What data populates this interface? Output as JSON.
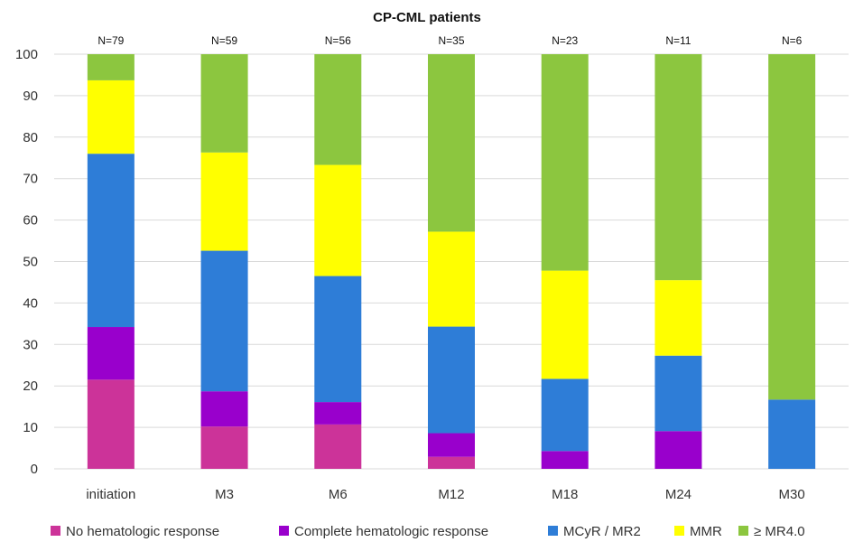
{
  "chart_data": {
    "type": "bar",
    "stacked": true,
    "title": "CP-CML patients",
    "categories": [
      "initiation",
      "M3",
      "M6",
      "M12",
      "M18",
      "M24",
      "M30"
    ],
    "n_labels": [
      "N=79",
      "N=59",
      "N=56",
      "N=35",
      "N=23",
      "N=11",
      "N=6"
    ],
    "ylim": [
      0,
      100
    ],
    "yticks": [
      0,
      10,
      20,
      30,
      40,
      50,
      60,
      70,
      80,
      90,
      100
    ],
    "grid": true,
    "legend_position": "bottom",
    "series": [
      {
        "name": "No hematologic response",
        "color": "#cc3399",
        "values": [
          21.5,
          10.2,
          10.7,
          2.9,
          0,
          0,
          0
        ]
      },
      {
        "name": "Complete hematologic response",
        "color": "#9900cc",
        "values": [
          12.7,
          8.5,
          5.4,
          5.7,
          4.3,
          9.1,
          0
        ]
      },
      {
        "name": "MCyR / MR2",
        "color": "#2e7dd7",
        "values": [
          41.8,
          33.9,
          30.4,
          25.7,
          17.4,
          18.2,
          16.7
        ]
      },
      {
        "name": "MMR",
        "color": "#ffff00",
        "values": [
          17.7,
          23.7,
          26.8,
          22.9,
          26.1,
          18.2,
          0
        ]
      },
      {
        "name": "≥ MR4.0",
        "color": "#8cc63f",
        "values": [
          6.3,
          23.7,
          26.7,
          42.8,
          52.2,
          54.5,
          83.3
        ]
      }
    ]
  }
}
